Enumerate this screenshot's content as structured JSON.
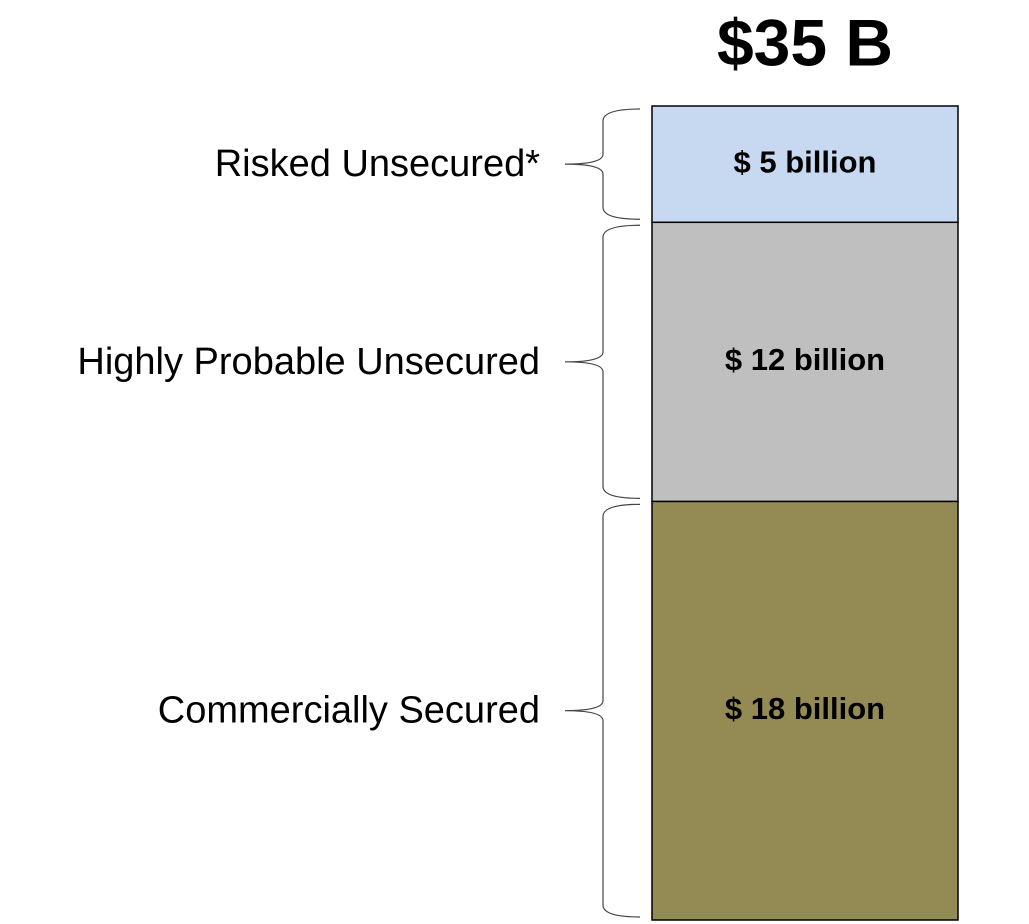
{
  "chart_data": {
    "type": "bar",
    "stacked": true,
    "title": "$35 B",
    "series": [
      {
        "name": "Commercially Secured",
        "color": "#948a54",
        "values": [
          18
        ],
        "value_labels": [
          "$ 18 billion"
        ]
      },
      {
        "name": "Highly Probable Unsecured",
        "color": "#bfbfbf",
        "values": [
          12
        ],
        "value_labels": [
          "$ 12 billion"
        ]
      },
      {
        "name": "Risked Unsecured*",
        "color": "#c6d9f1",
        "values": [
          5
        ],
        "value_labels": [
          "$ 5 billion"
        ]
      }
    ]
  }
}
